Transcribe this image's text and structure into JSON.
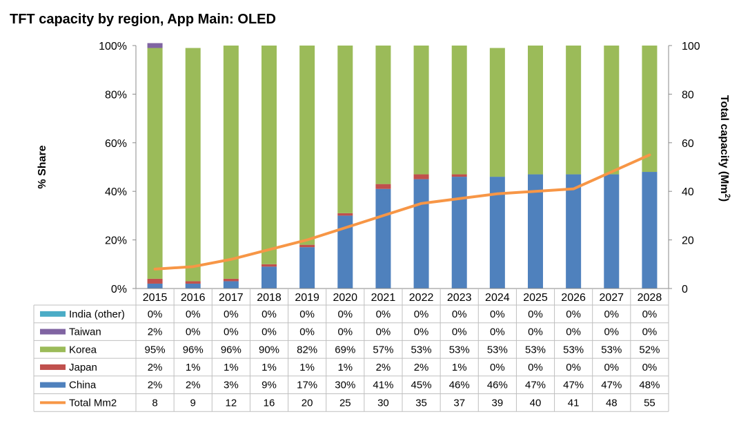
{
  "chart_data": {
    "type": "bar",
    "title": "TFT capacity by region, App Main: OLED",
    "ylabel": "% Share",
    "y2label_main": "Total capacity (Mm",
    "y2label_sup": "2",
    "y2label_close": ")",
    "ylim": [
      0,
      100
    ],
    "y2lim": [
      0,
      100
    ],
    "y_ticks": [
      "0%",
      "20%",
      "40%",
      "60%",
      "80%",
      "100%"
    ],
    "y2_ticks": [
      "0",
      "20",
      "40",
      "60",
      "80",
      "100"
    ],
    "categories": [
      "2015",
      "2016",
      "2017",
      "2018",
      "2019",
      "2020",
      "2021",
      "2022",
      "2023",
      "2024",
      "2025",
      "2026",
      "2027",
      "2028"
    ],
    "stacked": true,
    "grid": false,
    "legend": "data-table",
    "series": [
      {
        "name": "China",
        "type": "bar",
        "color": "#4F81BD",
        "values": [
          2,
          2,
          3,
          9,
          17,
          30,
          41,
          45,
          46,
          46,
          47,
          47,
          47,
          48
        ],
        "labels": [
          "2%",
          "2%",
          "3%",
          "9%",
          "17%",
          "30%",
          "41%",
          "45%",
          "46%",
          "46%",
          "47%",
          "47%",
          "47%",
          "48%"
        ]
      },
      {
        "name": "Japan",
        "type": "bar",
        "color": "#C0504D",
        "values": [
          2,
          1,
          1,
          1,
          1,
          1,
          2,
          2,
          1,
          0,
          0,
          0,
          0,
          0
        ],
        "labels": [
          "2%",
          "1%",
          "1%",
          "1%",
          "1%",
          "1%",
          "2%",
          "2%",
          "1%",
          "0%",
          "0%",
          "0%",
          "0%",
          "0%"
        ]
      },
      {
        "name": "Korea",
        "type": "bar",
        "color": "#9BBB59",
        "values": [
          95,
          96,
          96,
          90,
          82,
          69,
          57,
          53,
          53,
          53,
          53,
          53,
          53,
          52
        ],
        "labels": [
          "95%",
          "96%",
          "96%",
          "90%",
          "82%",
          "69%",
          "57%",
          "53%",
          "53%",
          "53%",
          "53%",
          "53%",
          "53%",
          "52%"
        ]
      },
      {
        "name": "Taiwan",
        "type": "bar",
        "color": "#8064A2",
        "values": [
          2,
          0,
          0,
          0,
          0,
          0,
          0,
          0,
          0,
          0,
          0,
          0,
          0,
          0
        ],
        "labels": [
          "2%",
          "0%",
          "0%",
          "0%",
          "0%",
          "0%",
          "0%",
          "0%",
          "0%",
          "0%",
          "0%",
          "0%",
          "0%",
          "0%"
        ]
      },
      {
        "name": "India (other)",
        "type": "bar",
        "color": "#4BACC6",
        "values": [
          0,
          0,
          0,
          0,
          0,
          0,
          0,
          0,
          0,
          0,
          0,
          0,
          0,
          0
        ],
        "labels": [
          "0%",
          "0%",
          "0%",
          "0%",
          "0%",
          "0%",
          "0%",
          "0%",
          "0%",
          "0%",
          "0%",
          "0%",
          "0%",
          "0%"
        ]
      },
      {
        "name": "Total Mm2",
        "type": "line",
        "axis": "right",
        "color": "#F79646",
        "values": [
          8,
          9,
          12,
          16,
          20,
          25,
          30,
          35,
          37,
          39,
          40,
          41,
          48,
          55
        ],
        "labels": [
          "8",
          "9",
          "12",
          "16",
          "20",
          "25",
          "30",
          "35",
          "37",
          "39",
          "40",
          "41",
          "48",
          "55"
        ]
      }
    ],
    "table_row_order": [
      "India (other)",
      "Taiwan",
      "Korea",
      "Japan",
      "China",
      "Total Mm2"
    ]
  }
}
